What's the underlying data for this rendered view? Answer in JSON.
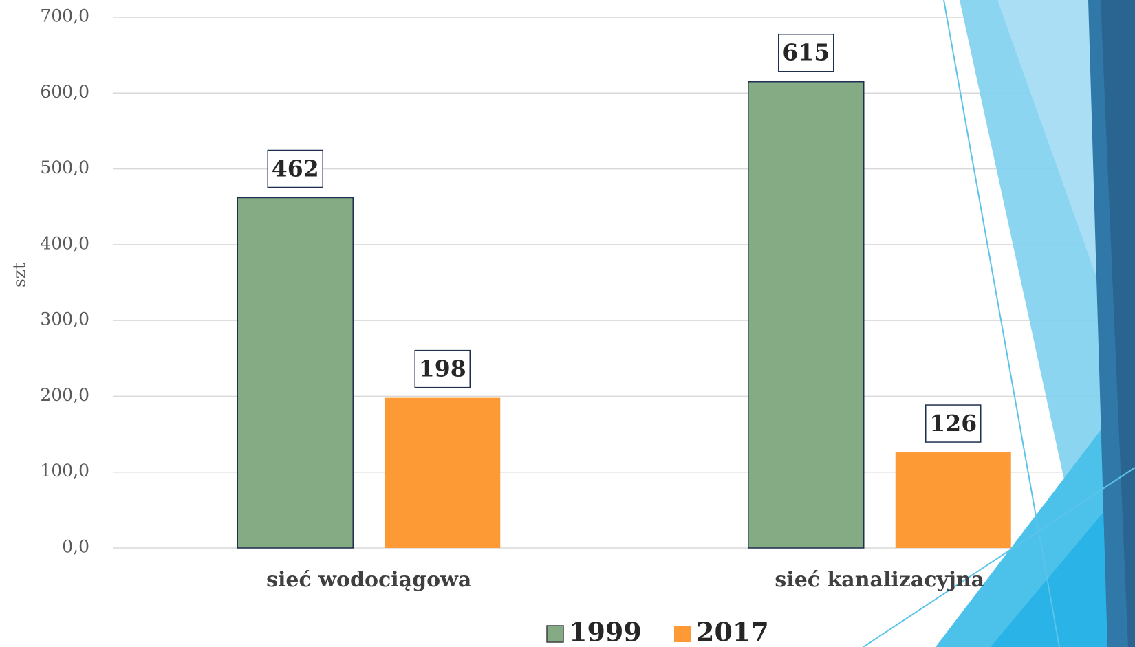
{
  "chart_data": {
    "type": "bar",
    "y_label": "szt",
    "categories": [
      "sieć wodociągowa",
      "sieć kanalizacyjna"
    ],
    "series": [
      {
        "name": "1999",
        "color": "#85ab85",
        "values": [
          462,
          615
        ]
      },
      {
        "name": "2017",
        "color": "#fd9a35",
        "values": [
          198,
          126
        ]
      }
    ],
    "ylim": [
      0,
      700
    ],
    "yticks": [
      {
        "value": 0,
        "label": "0,0"
      },
      {
        "value": 100,
        "label": "100,0"
      },
      {
        "value": 200,
        "label": "200,0"
      },
      {
        "value": 300,
        "label": "300,0"
      },
      {
        "value": 400,
        "label": "400,0"
      },
      {
        "value": 500,
        "label": "500,0"
      },
      {
        "value": 600,
        "label": "600,0"
      },
      {
        "value": 700,
        "label": "700,0"
      }
    ],
    "grid": true,
    "legend": "bottom"
  }
}
